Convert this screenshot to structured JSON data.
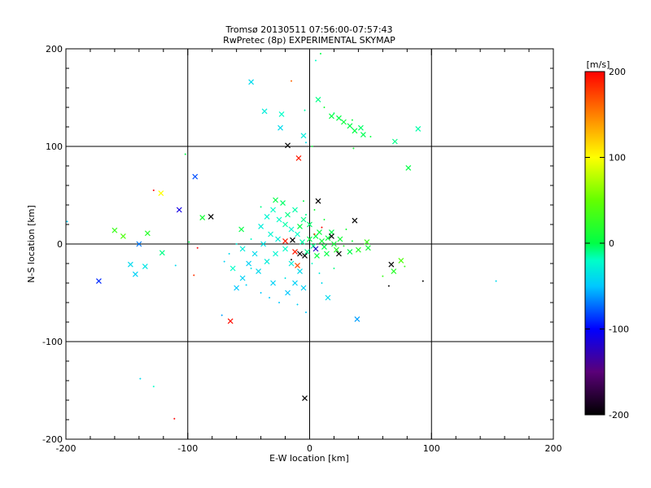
{
  "chart_data": {
    "type": "scatter",
    "title": "Tromsø 20130511 07:56:00-07:57:43",
    "subtitle": "RwPretec (8p) EXPERIMENTAL SKYMAP",
    "xlabel": "E-W location [km]",
    "ylabel": "N-S location [km]",
    "xlim": [
      -200,
      200
    ],
    "ylim": [
      -200,
      200
    ],
    "xticks": [
      "-200",
      "-100",
      "0",
      "100",
      "200"
    ],
    "yticks": [
      "-200",
      "-100",
      "0",
      "100",
      "200"
    ],
    "grid": [
      -100,
      0,
      100
    ],
    "colorbar": {
      "label": "[m/s]",
      "range": [
        -200,
        200
      ],
      "ticks": [
        "200",
        "100",
        "0",
        "-100",
        "-200"
      ],
      "placement": "right"
    },
    "point_format": [
      "x_km",
      "y_km",
      "velocity_m_s",
      "marker (1=cross,0=dot)"
    ],
    "points": [
      [
        -9,
        88,
        190,
        1
      ],
      [
        -18,
        101,
        -200,
        1
      ],
      [
        7,
        44,
        -200,
        1
      ],
      [
        37,
        24,
        -200,
        1
      ],
      [
        -4,
        -158,
        -200,
        1
      ],
      [
        -65,
        -79,
        195,
        1
      ],
      [
        -122,
        52,
        100,
        1
      ],
      [
        -107,
        35,
        -110,
        1
      ],
      [
        -94,
        69,
        -80,
        1
      ],
      [
        -173,
        -38,
        -90,
        1
      ],
      [
        -81,
        28,
        -200,
        1
      ],
      [
        39,
        -77,
        -60,
        1
      ],
      [
        -48,
        166,
        -40,
        1
      ],
      [
        -37,
        136,
        -30,
        1
      ],
      [
        -23,
        133,
        -20,
        1
      ],
      [
        -24,
        119,
        -40,
        1
      ],
      [
        -5,
        111,
        -30,
        1
      ],
      [
        7,
        148,
        -10,
        1
      ],
      [
        -4,
        137,
        -15,
        0
      ],
      [
        -3,
        104,
        -40,
        0
      ],
      [
        33,
        121,
        0,
        1
      ],
      [
        28,
        125,
        5,
        1
      ],
      [
        37,
        116,
        0,
        1
      ],
      [
        42,
        119,
        -5,
        1
      ],
      [
        24,
        129,
        0,
        1
      ],
      [
        18,
        131,
        0,
        1
      ],
      [
        44,
        112,
        -2,
        1
      ],
      [
        35,
        127,
        5,
        0
      ],
      [
        20,
        134,
        -5,
        0
      ],
      [
        12,
        140,
        10,
        0
      ],
      [
        50,
        110,
        0,
        0
      ],
      [
        70,
        105,
        -10,
        1
      ],
      [
        81,
        78,
        0,
        1
      ],
      [
        89,
        118,
        -15,
        1
      ],
      [
        -15,
        167,
        160,
        0
      ],
      [
        5,
        188,
        -20,
        0
      ],
      [
        9,
        195,
        0,
        0
      ],
      [
        36,
        98,
        10,
        0
      ],
      [
        2,
        100,
        0,
        0
      ],
      [
        -160,
        14,
        30,
        1
      ],
      [
        -153,
        8,
        40,
        1
      ],
      [
        -133,
        11,
        20,
        1
      ],
      [
        -140,
        0,
        -70,
        1
      ],
      [
        -147,
        -21,
        -40,
        1
      ],
      [
        -135,
        -23,
        -35,
        1
      ],
      [
        -143,
        -31,
        -45,
        1
      ],
      [
        -121,
        -9,
        -10,
        1
      ],
      [
        -88,
        27,
        10,
        1
      ],
      [
        -99,
        2,
        0,
        0
      ],
      [
        -56,
        15,
        0,
        1
      ],
      [
        -63,
        -25,
        -20,
        1
      ],
      [
        -110,
        -22,
        -40,
        0
      ],
      [
        -199,
        23,
        -50,
        0
      ],
      [
        -128,
        55,
        200,
        0
      ],
      [
        -102,
        92,
        0,
        0
      ],
      [
        -95,
        -32,
        180,
        0
      ],
      [
        -92,
        -4,
        200,
        0
      ],
      [
        67,
        -21,
        -200,
        1
      ],
      [
        75,
        -17,
        40,
        1
      ],
      [
        60,
        -33,
        30,
        0
      ],
      [
        69,
        -28,
        20,
        1
      ],
      [
        78,
        -23,
        30,
        0
      ],
      [
        65,
        -43,
        -200,
        0
      ],
      [
        93,
        -38,
        -200,
        0
      ],
      [
        153,
        -38,
        -40,
        0
      ],
      [
        48,
        -4,
        10,
        1
      ],
      [
        40,
        -6,
        20,
        1
      ],
      [
        33,
        -8,
        0,
        1
      ],
      [
        47,
        2,
        30,
        1
      ],
      [
        -139,
        -138,
        -40,
        0
      ],
      [
        -128,
        -146,
        -20,
        0
      ],
      [
        -111,
        -179,
        200,
        0
      ],
      [
        -72,
        -73,
        -60,
        0
      ],
      [
        0,
        5,
        0,
        1
      ],
      [
        5,
        8,
        0,
        1
      ],
      [
        10,
        3,
        10,
        1
      ],
      [
        15,
        6,
        5,
        1
      ],
      [
        20,
        0,
        10,
        1
      ],
      [
        12,
        -3,
        0,
        1
      ],
      [
        3,
        -2,
        -10,
        1
      ],
      [
        8,
        12,
        5,
        1
      ],
      [
        18,
        12,
        0,
        1
      ],
      [
        25,
        5,
        10,
        1
      ],
      [
        22,
        -6,
        20,
        1
      ],
      [
        14,
        -10,
        0,
        1
      ],
      [
        6,
        -12,
        5,
        1
      ],
      [
        -2,
        -8,
        -10,
        1
      ],
      [
        -6,
        2,
        -15,
        1
      ],
      [
        -10,
        10,
        -20,
        1
      ],
      [
        -15,
        15,
        -25,
        1
      ],
      [
        -20,
        20,
        -15,
        1
      ],
      [
        -25,
        25,
        -20,
        1
      ],
      [
        -18,
        30,
        -10,
        1
      ],
      [
        -12,
        35,
        -15,
        1
      ],
      [
        -22,
        42,
        -5,
        1
      ],
      [
        -30,
        35,
        -20,
        1
      ],
      [
        -35,
        28,
        -25,
        1
      ],
      [
        -40,
        18,
        -30,
        1
      ],
      [
        -32,
        10,
        -25,
        1
      ],
      [
        -26,
        5,
        -30,
        1
      ],
      [
        -38,
        0,
        -35,
        1
      ],
      [
        -45,
        -10,
        -40,
        1
      ],
      [
        -50,
        -20,
        -45,
        1
      ],
      [
        -42,
        -28,
        -40,
        1
      ],
      [
        -35,
        -18,
        -30,
        1
      ],
      [
        -28,
        -10,
        -25,
        1
      ],
      [
        -20,
        -5,
        -20,
        1
      ],
      [
        -15,
        -20,
        -30,
        1
      ],
      [
        -8,
        -28,
        -40,
        1
      ],
      [
        -12,
        -40,
        -45,
        1
      ],
      [
        -18,
        -50,
        -50,
        1
      ],
      [
        -5,
        -45,
        -45,
        1
      ],
      [
        -30,
        -40,
        -45,
        1
      ],
      [
        -55,
        -35,
        -45,
        1
      ],
      [
        -60,
        -45,
        -50,
        1
      ],
      [
        -40,
        -50,
        -50,
        0
      ],
      [
        -25,
        -60,
        -50,
        0
      ],
      [
        -10,
        -62,
        -45,
        0
      ],
      [
        -3,
        -70,
        -50,
        0
      ],
      [
        15,
        -55,
        -40,
        1
      ],
      [
        -55,
        -5,
        -30,
        1
      ],
      [
        -48,
        5,
        -20,
        0
      ],
      [
        -5,
        25,
        -10,
        1
      ],
      [
        0,
        20,
        -5,
        1
      ],
      [
        -8,
        18,
        0,
        1
      ],
      [
        -3,
        30,
        -10,
        0
      ],
      [
        -28,
        45,
        0,
        1
      ],
      [
        4,
        35,
        10,
        0
      ],
      [
        12,
        25,
        5,
        0
      ],
      [
        -20,
        3,
        190,
        1
      ],
      [
        -12,
        -8,
        190,
        1
      ],
      [
        -8,
        -10,
        -200,
        1
      ],
      [
        -14,
        4,
        -200,
        1
      ],
      [
        -4,
        -12,
        -200,
        1
      ],
      [
        5,
        -5,
        -120,
        1
      ],
      [
        24,
        -10,
        -200,
        1
      ],
      [
        18,
        8,
        -200,
        1
      ],
      [
        4,
        10,
        180,
        0
      ],
      [
        10,
        17,
        200,
        0
      ],
      [
        -10,
        -22,
        170,
        1
      ],
      [
        -15,
        -16,
        -200,
        0
      ],
      [
        -60,
        0,
        -30,
        0
      ],
      [
        -66,
        -10,
        -40,
        0
      ],
      [
        -70,
        -18,
        -45,
        0
      ],
      [
        -48,
        -25,
        -35,
        0
      ],
      [
        -52,
        -42,
        -45,
        0
      ],
      [
        30,
        15,
        10,
        0
      ],
      [
        28,
        -2,
        20,
        0
      ],
      [
        35,
        3,
        10,
        0
      ],
      [
        2,
        -20,
        -20,
        0
      ],
      [
        8,
        -30,
        -30,
        0
      ],
      [
        -33,
        -55,
        -50,
        0
      ],
      [
        -20,
        -35,
        -35,
        0
      ],
      [
        -40,
        38,
        -10,
        0
      ],
      [
        10,
        -40,
        -40,
        0
      ],
      [
        20,
        -25,
        -10,
        0
      ],
      [
        -5,
        44,
        0,
        0
      ]
    ]
  }
}
